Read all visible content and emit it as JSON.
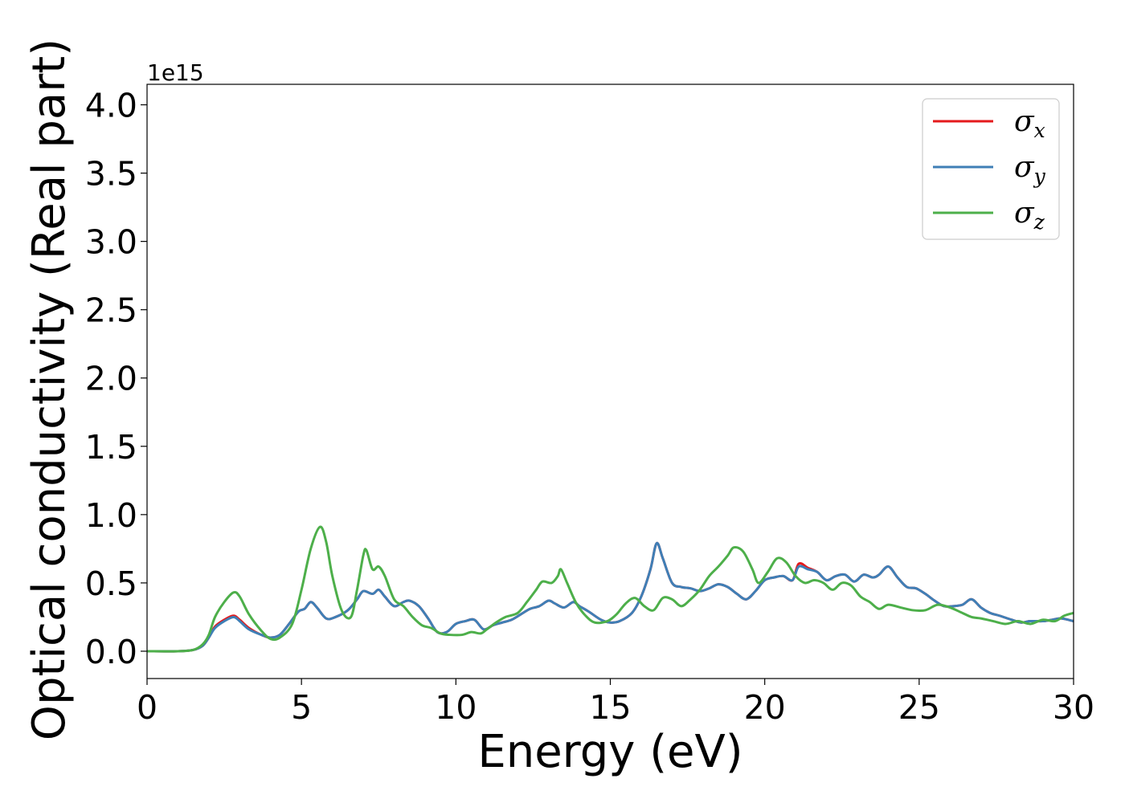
{
  "chart_data": {
    "type": "line",
    "title": "",
    "xlabel": "Energy (eV)",
    "ylabel": "Optical conductivity (Real part)",
    "y_offset_label": "1e15",
    "xlim": [
      0,
      30
    ],
    "ylim": [
      -0.2,
      4.15
    ],
    "x_ticks": [
      0,
      5,
      10,
      15,
      20,
      25,
      30
    ],
    "x_tick_labels": [
      "0",
      "5",
      "10",
      "15",
      "20",
      "25",
      "30"
    ],
    "y_ticks": [
      0.0,
      0.5,
      1.0,
      1.5,
      2.0,
      2.5,
      3.0,
      3.5,
      4.0
    ],
    "y_tick_labels": [
      "0.0",
      "0.5",
      "1.0",
      "1.5",
      "2.0",
      "2.5",
      "3.0",
      "3.5",
      "4.0"
    ],
    "grid": false,
    "legend_position": "top-right",
    "series": [
      {
        "name": "σx",
        "label_base": "σ",
        "label_sub": "x",
        "color": "#e41a1c",
        "points": [
          [
            0,
            0
          ],
          [
            1,
            0
          ],
          [
            1.5,
            0.01
          ],
          [
            1.8,
            0.04
          ],
          [
            2.0,
            0.1
          ],
          [
            2.2,
            0.18
          ],
          [
            2.5,
            0.23
          ],
          [
            2.8,
            0.26
          ],
          [
            3.0,
            0.23
          ],
          [
            3.3,
            0.17
          ],
          [
            3.7,
            0.12
          ],
          [
            4.0,
            0.1
          ],
          [
            4.3,
            0.12
          ],
          [
            4.6,
            0.2
          ],
          [
            4.9,
            0.29
          ],
          [
            5.1,
            0.31
          ],
          [
            5.3,
            0.36
          ],
          [
            5.5,
            0.32
          ],
          [
            5.8,
            0.24
          ],
          [
            6.1,
            0.25
          ],
          [
            6.5,
            0.3
          ],
          [
            6.8,
            0.38
          ],
          [
            7.0,
            0.44
          ],
          [
            7.3,
            0.42
          ],
          [
            7.5,
            0.45
          ],
          [
            7.7,
            0.4
          ],
          [
            8.0,
            0.33
          ],
          [
            8.3,
            0.36
          ],
          [
            8.5,
            0.37
          ],
          [
            8.8,
            0.33
          ],
          [
            9.1,
            0.24
          ],
          [
            9.4,
            0.14
          ],
          [
            9.7,
            0.14
          ],
          [
            10.0,
            0.2
          ],
          [
            10.3,
            0.22
          ],
          [
            10.6,
            0.23
          ],
          [
            10.9,
            0.16
          ],
          [
            11.2,
            0.19
          ],
          [
            11.5,
            0.21
          ],
          [
            11.8,
            0.23
          ],
          [
            12.1,
            0.27
          ],
          [
            12.4,
            0.31
          ],
          [
            12.7,
            0.33
          ],
          [
            13.0,
            0.37
          ],
          [
            13.2,
            0.35
          ],
          [
            13.5,
            0.32
          ],
          [
            13.8,
            0.36
          ],
          [
            14.0,
            0.33
          ],
          [
            14.3,
            0.29
          ],
          [
            14.7,
            0.23
          ],
          [
            15.0,
            0.21
          ],
          [
            15.3,
            0.22
          ],
          [
            15.7,
            0.28
          ],
          [
            16.0,
            0.4
          ],
          [
            16.3,
            0.6
          ],
          [
            16.5,
            0.79
          ],
          [
            16.7,
            0.68
          ],
          [
            17.0,
            0.5
          ],
          [
            17.3,
            0.47
          ],
          [
            17.6,
            0.46
          ],
          [
            17.9,
            0.44
          ],
          [
            18.2,
            0.46
          ],
          [
            18.5,
            0.49
          ],
          [
            18.8,
            0.47
          ],
          [
            19.1,
            0.42
          ],
          [
            19.4,
            0.38
          ],
          [
            19.7,
            0.44
          ],
          [
            20.0,
            0.52
          ],
          [
            20.3,
            0.54
          ],
          [
            20.6,
            0.55
          ],
          [
            20.9,
            0.52
          ],
          [
            21.1,
            0.64
          ],
          [
            21.4,
            0.61
          ],
          [
            21.7,
            0.58
          ],
          [
            22.0,
            0.52
          ],
          [
            22.3,
            0.55
          ],
          [
            22.6,
            0.56
          ],
          [
            22.9,
            0.51
          ],
          [
            23.2,
            0.56
          ],
          [
            23.5,
            0.54
          ],
          [
            23.7,
            0.56
          ],
          [
            24.0,
            0.62
          ],
          [
            24.3,
            0.54
          ],
          [
            24.6,
            0.47
          ],
          [
            24.9,
            0.46
          ],
          [
            25.2,
            0.42
          ],
          [
            25.5,
            0.37
          ],
          [
            25.8,
            0.33
          ],
          [
            26.1,
            0.33
          ],
          [
            26.4,
            0.34
          ],
          [
            26.7,
            0.38
          ],
          [
            27.0,
            0.32
          ],
          [
            27.3,
            0.28
          ],
          [
            27.6,
            0.26
          ],
          [
            28.0,
            0.23
          ],
          [
            28.3,
            0.21
          ],
          [
            28.6,
            0.22
          ],
          [
            29.0,
            0.22
          ],
          [
            29.3,
            0.23
          ],
          [
            29.6,
            0.24
          ],
          [
            30,
            0.22
          ]
        ]
      },
      {
        "name": "σy",
        "label_base": "σ",
        "label_sub": "y",
        "color": "#3f7fb6",
        "points": [
          [
            0,
            0
          ],
          [
            1,
            0
          ],
          [
            1.5,
            0.01
          ],
          [
            1.8,
            0.04
          ],
          [
            2.0,
            0.1
          ],
          [
            2.2,
            0.17
          ],
          [
            2.5,
            0.22
          ],
          [
            2.8,
            0.25
          ],
          [
            3.0,
            0.22
          ],
          [
            3.3,
            0.16
          ],
          [
            3.7,
            0.12
          ],
          [
            4.0,
            0.1
          ],
          [
            4.3,
            0.12
          ],
          [
            4.6,
            0.2
          ],
          [
            4.9,
            0.29
          ],
          [
            5.1,
            0.31
          ],
          [
            5.3,
            0.36
          ],
          [
            5.5,
            0.32
          ],
          [
            5.8,
            0.24
          ],
          [
            6.1,
            0.25
          ],
          [
            6.5,
            0.3
          ],
          [
            6.8,
            0.38
          ],
          [
            7.0,
            0.44
          ],
          [
            7.3,
            0.42
          ],
          [
            7.5,
            0.45
          ],
          [
            7.7,
            0.4
          ],
          [
            8.0,
            0.33
          ],
          [
            8.3,
            0.36
          ],
          [
            8.5,
            0.37
          ],
          [
            8.8,
            0.33
          ],
          [
            9.1,
            0.24
          ],
          [
            9.4,
            0.14
          ],
          [
            9.7,
            0.14
          ],
          [
            10.0,
            0.2
          ],
          [
            10.3,
            0.22
          ],
          [
            10.6,
            0.23
          ],
          [
            10.9,
            0.16
          ],
          [
            11.2,
            0.19
          ],
          [
            11.5,
            0.21
          ],
          [
            11.8,
            0.23
          ],
          [
            12.1,
            0.27
          ],
          [
            12.4,
            0.31
          ],
          [
            12.7,
            0.33
          ],
          [
            13.0,
            0.37
          ],
          [
            13.2,
            0.35
          ],
          [
            13.5,
            0.32
          ],
          [
            13.8,
            0.36
          ],
          [
            14.0,
            0.33
          ],
          [
            14.3,
            0.29
          ],
          [
            14.7,
            0.23
          ],
          [
            15.0,
            0.21
          ],
          [
            15.3,
            0.22
          ],
          [
            15.7,
            0.28
          ],
          [
            16.0,
            0.4
          ],
          [
            16.3,
            0.6
          ],
          [
            16.5,
            0.79
          ],
          [
            16.7,
            0.68
          ],
          [
            17.0,
            0.5
          ],
          [
            17.3,
            0.47
          ],
          [
            17.6,
            0.46
          ],
          [
            17.9,
            0.44
          ],
          [
            18.2,
            0.46
          ],
          [
            18.5,
            0.49
          ],
          [
            18.8,
            0.47
          ],
          [
            19.1,
            0.42
          ],
          [
            19.4,
            0.38
          ],
          [
            19.7,
            0.44
          ],
          [
            20.0,
            0.52
          ],
          [
            20.3,
            0.54
          ],
          [
            20.6,
            0.55
          ],
          [
            20.9,
            0.52
          ],
          [
            21.1,
            0.62
          ],
          [
            21.4,
            0.6
          ],
          [
            21.7,
            0.58
          ],
          [
            22.0,
            0.52
          ],
          [
            22.3,
            0.55
          ],
          [
            22.6,
            0.56
          ],
          [
            22.9,
            0.51
          ],
          [
            23.2,
            0.56
          ],
          [
            23.5,
            0.54
          ],
          [
            23.7,
            0.56
          ],
          [
            24.0,
            0.62
          ],
          [
            24.3,
            0.54
          ],
          [
            24.6,
            0.47
          ],
          [
            24.9,
            0.46
          ],
          [
            25.2,
            0.42
          ],
          [
            25.5,
            0.37
          ],
          [
            25.8,
            0.33
          ],
          [
            26.1,
            0.33
          ],
          [
            26.4,
            0.34
          ],
          [
            26.7,
            0.38
          ],
          [
            27.0,
            0.32
          ],
          [
            27.3,
            0.28
          ],
          [
            27.6,
            0.26
          ],
          [
            28.0,
            0.23
          ],
          [
            28.3,
            0.21
          ],
          [
            28.6,
            0.22
          ],
          [
            29.0,
            0.22
          ],
          [
            29.3,
            0.23
          ],
          [
            29.6,
            0.24
          ],
          [
            30,
            0.22
          ]
        ]
      },
      {
        "name": "σz",
        "label_base": "σ",
        "label_sub": "z",
        "color": "#4daf4a",
        "points": [
          [
            0,
            0
          ],
          [
            1,
            0
          ],
          [
            1.5,
            0.01
          ],
          [
            1.8,
            0.05
          ],
          [
            2.0,
            0.12
          ],
          [
            2.2,
            0.25
          ],
          [
            2.5,
            0.36
          ],
          [
            2.8,
            0.43
          ],
          [
            3.0,
            0.4
          ],
          [
            3.3,
            0.27
          ],
          [
            3.7,
            0.15
          ],
          [
            4.0,
            0.09
          ],
          [
            4.3,
            0.1
          ],
          [
            4.7,
            0.2
          ],
          [
            5.0,
            0.45
          ],
          [
            5.3,
            0.75
          ],
          [
            5.6,
            0.91
          ],
          [
            5.8,
            0.8
          ],
          [
            6.0,
            0.55
          ],
          [
            6.3,
            0.3
          ],
          [
            6.6,
            0.25
          ],
          [
            6.8,
            0.45
          ],
          [
            7.0,
            0.7
          ],
          [
            7.1,
            0.74
          ],
          [
            7.3,
            0.6
          ],
          [
            7.5,
            0.62
          ],
          [
            7.7,
            0.55
          ],
          [
            8.0,
            0.38
          ],
          [
            8.3,
            0.33
          ],
          [
            8.6,
            0.25
          ],
          [
            8.9,
            0.19
          ],
          [
            9.2,
            0.17
          ],
          [
            9.5,
            0.13
          ],
          [
            9.8,
            0.12
          ],
          [
            10.2,
            0.12
          ],
          [
            10.5,
            0.14
          ],
          [
            10.8,
            0.13
          ],
          [
            11.0,
            0.16
          ],
          [
            11.3,
            0.21
          ],
          [
            11.6,
            0.25
          ],
          [
            12.0,
            0.28
          ],
          [
            12.3,
            0.36
          ],
          [
            12.6,
            0.45
          ],
          [
            12.8,
            0.51
          ],
          [
            13.1,
            0.5
          ],
          [
            13.3,
            0.55
          ],
          [
            13.4,
            0.6
          ],
          [
            13.6,
            0.5
          ],
          [
            13.9,
            0.35
          ],
          [
            14.2,
            0.26
          ],
          [
            14.5,
            0.21
          ],
          [
            14.9,
            0.22
          ],
          [
            15.2,
            0.27
          ],
          [
            15.5,
            0.35
          ],
          [
            15.8,
            0.39
          ],
          [
            16.1,
            0.33
          ],
          [
            16.4,
            0.3
          ],
          [
            16.7,
            0.39
          ],
          [
            17.0,
            0.38
          ],
          [
            17.3,
            0.33
          ],
          [
            17.6,
            0.38
          ],
          [
            17.9,
            0.45
          ],
          [
            18.2,
            0.55
          ],
          [
            18.5,
            0.62
          ],
          [
            18.8,
            0.7
          ],
          [
            19.0,
            0.76
          ],
          [
            19.3,
            0.73
          ],
          [
            19.6,
            0.6
          ],
          [
            19.8,
            0.5
          ],
          [
            20.1,
            0.58
          ],
          [
            20.4,
            0.68
          ],
          [
            20.7,
            0.65
          ],
          [
            21.0,
            0.55
          ],
          [
            21.3,
            0.5
          ],
          [
            21.6,
            0.52
          ],
          [
            21.9,
            0.5
          ],
          [
            22.2,
            0.45
          ],
          [
            22.5,
            0.5
          ],
          [
            22.8,
            0.48
          ],
          [
            23.1,
            0.4
          ],
          [
            23.4,
            0.36
          ],
          [
            23.7,
            0.31
          ],
          [
            24.0,
            0.34
          ],
          [
            24.4,
            0.32
          ],
          [
            24.8,
            0.3
          ],
          [
            25.2,
            0.3
          ],
          [
            25.6,
            0.34
          ],
          [
            26.0,
            0.32
          ],
          [
            26.4,
            0.28
          ],
          [
            26.7,
            0.25
          ],
          [
            27.0,
            0.24
          ],
          [
            27.4,
            0.22
          ],
          [
            27.8,
            0.2
          ],
          [
            28.2,
            0.22
          ],
          [
            28.6,
            0.2
          ],
          [
            29.0,
            0.23
          ],
          [
            29.4,
            0.22
          ],
          [
            29.7,
            0.26
          ],
          [
            30,
            0.28
          ]
        ]
      }
    ]
  }
}
